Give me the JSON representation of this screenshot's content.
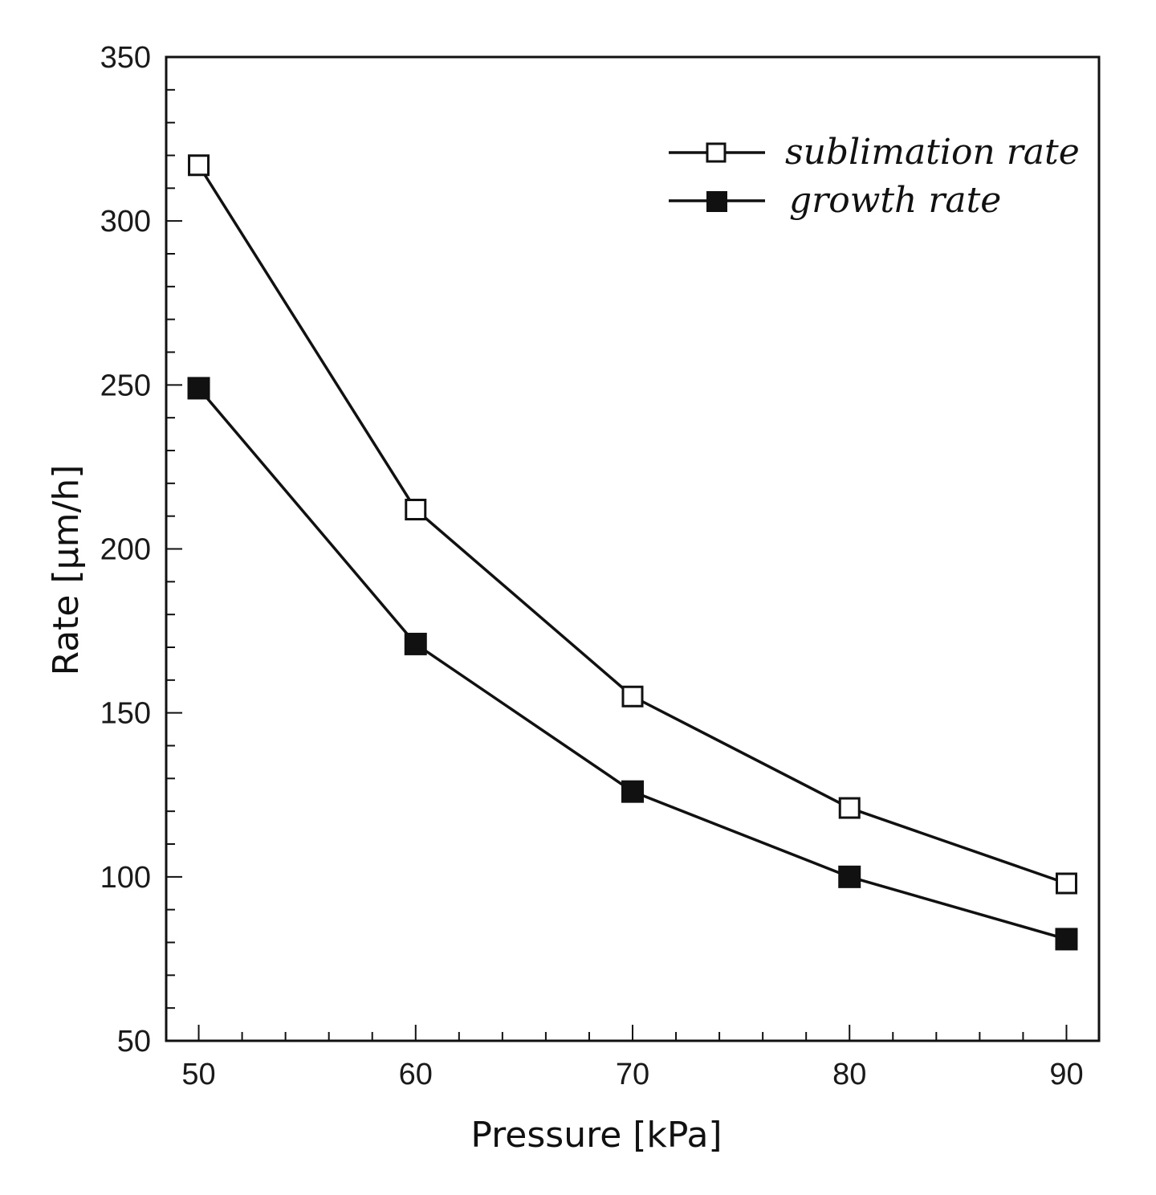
{
  "chart_data": {
    "type": "line",
    "title": "",
    "xlabel": "Pressure [kPa]",
    "ylabel": "Rate [µm/h]",
    "x": [
      50,
      60,
      70,
      80,
      90
    ],
    "xlim": [
      48.5,
      91.5
    ],
    "ylim": [
      50,
      350
    ],
    "xticks": [
      "50",
      "60",
      "70",
      "80",
      "90"
    ],
    "yticks": [
      "50",
      "100",
      "150",
      "200",
      "250",
      "300",
      "350"
    ],
    "grid": false,
    "legend_position": "top-right",
    "series": [
      {
        "name": "sublimation rate",
        "marker": "open-square",
        "values": [
          317,
          212,
          155,
          121,
          98
        ]
      },
      {
        "name": "growth rate",
        "marker": "filled-square",
        "values": [
          249,
          171,
          126,
          100,
          81
        ]
      }
    ]
  },
  "colors": {
    "line": "#111111",
    "axis": "#111111",
    "background": "#ffffff"
  }
}
